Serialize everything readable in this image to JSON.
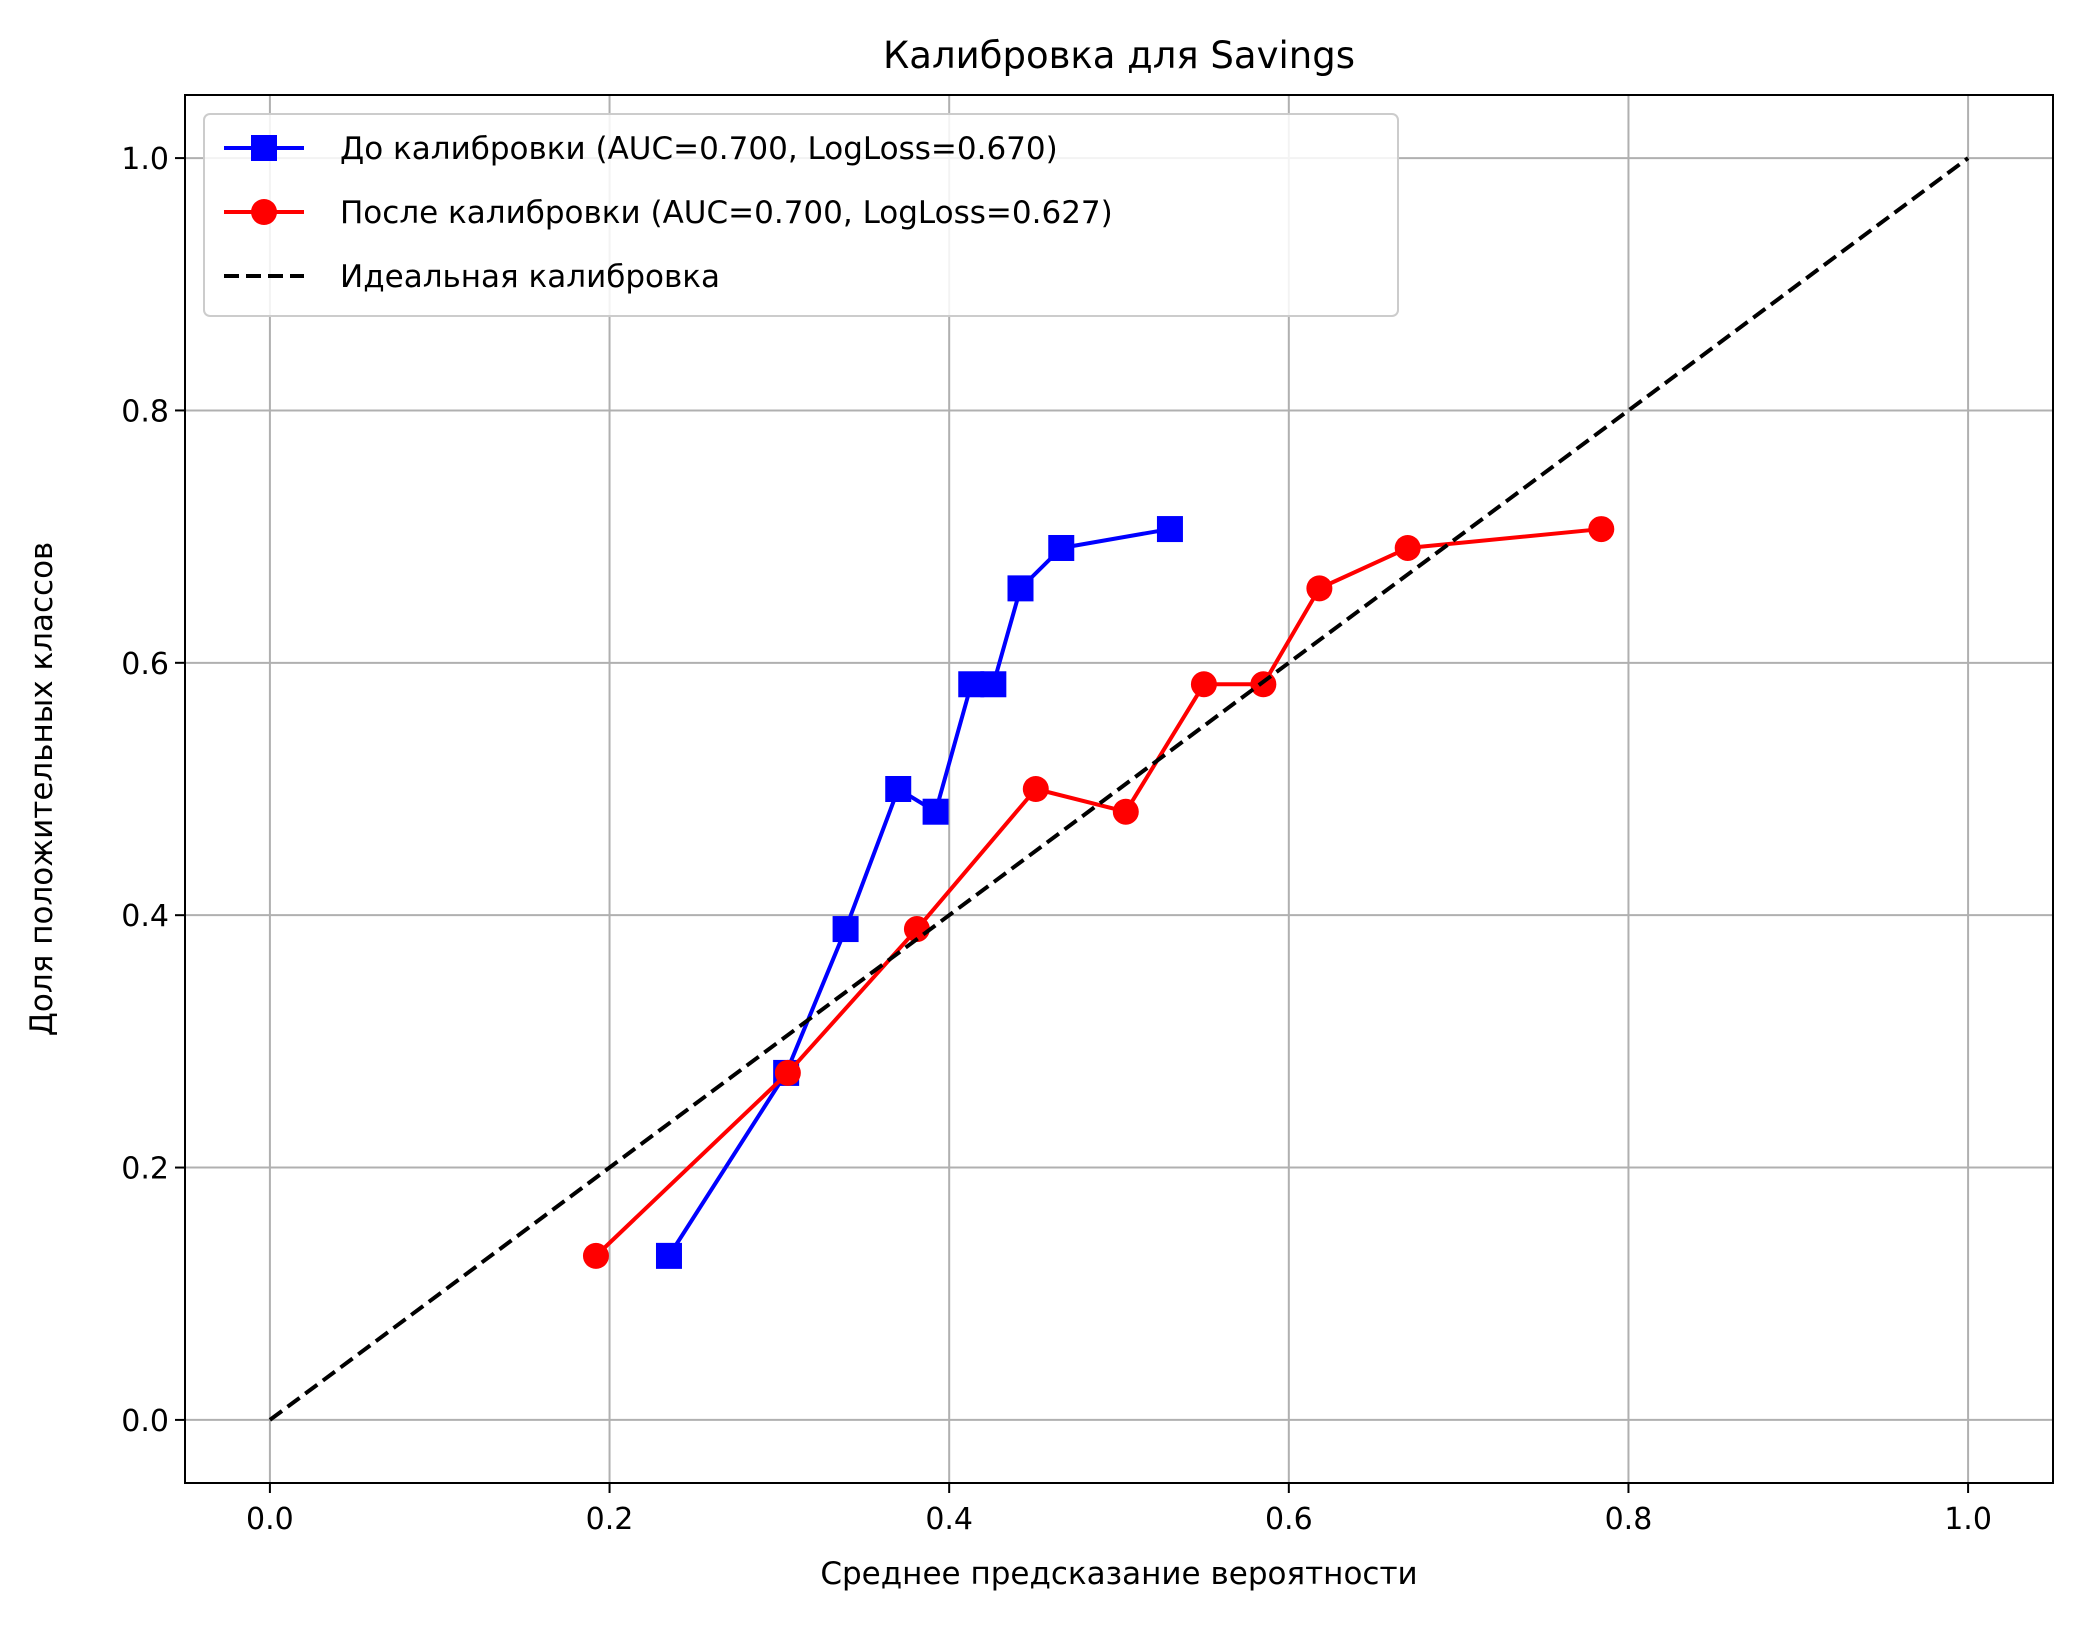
{
  "chart_data": {
    "type": "line",
    "title": "Калибровка для Savings",
    "xlabel": "Среднее предсказание вероятности",
    "ylabel": "Доля положительных классов",
    "xlim": [
      -0.05,
      1.05
    ],
    "ylim": [
      -0.05,
      1.05
    ],
    "xticks": [
      "0.0",
      "0.2",
      "0.4",
      "0.6",
      "0.8",
      "1.0"
    ],
    "yticks": [
      "0.0",
      "0.2",
      "0.4",
      "0.6",
      "0.8",
      "1.0"
    ],
    "grid": true,
    "legend_position": "upper-left",
    "series": [
      {
        "name": "До калибровки (AUC=0.700, LogLoss=0.670)",
        "color": "#0000ff",
        "marker": "square",
        "linestyle": "solid",
        "x": [
          0.235,
          0.304,
          0.339,
          0.37,
          0.392,
          0.413,
          0.426,
          0.442,
          0.466,
          0.53
        ],
        "y": [
          0.13,
          0.275,
          0.389,
          0.5,
          0.482,
          0.583,
          0.583,
          0.659,
          0.691,
          0.706
        ]
      },
      {
        "name": "После калибровки (AUC=0.700, LogLoss=0.627)",
        "color": "#ff0000",
        "marker": "circle",
        "linestyle": "solid",
        "x": [
          0.192,
          0.305,
          0.381,
          0.451,
          0.504,
          0.55,
          0.585,
          0.618,
          0.67,
          0.784
        ],
        "y": [
          0.13,
          0.275,
          0.389,
          0.5,
          0.482,
          0.583,
          0.583,
          0.659,
          0.691,
          0.706
        ]
      },
      {
        "name": "Идеальная калибровка",
        "color": "#000000",
        "marker": "none",
        "linestyle": "dashed",
        "x": [
          0.0,
          1.0
        ],
        "y": [
          0.0,
          1.0
        ]
      }
    ]
  }
}
